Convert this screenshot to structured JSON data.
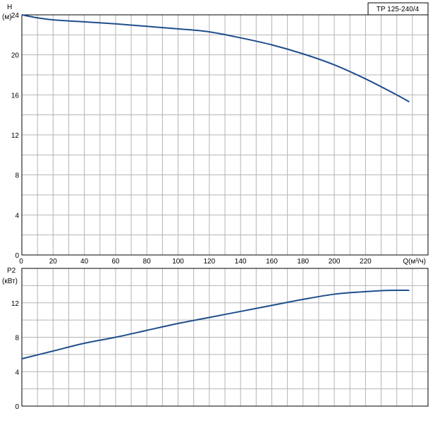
{
  "model": "TP 125-240/4",
  "chart_data": [
    {
      "type": "line",
      "ylabel_line1": "H",
      "ylabel_line2": "(м)",
      "xlabel": "Q(м³/ч)",
      "xlim": [
        0,
        260
      ],
      "ylim": [
        0,
        24
      ],
      "x_ticks": [
        0,
        20,
        40,
        60,
        80,
        100,
        120,
        140,
        160,
        180,
        200,
        220
      ],
      "y_ticks": [
        0,
        4,
        8,
        12,
        16,
        20,
        24
      ],
      "grid": true,
      "series_color": "#1f4e8c",
      "x": [
        0,
        10,
        20,
        40,
        60,
        80,
        100,
        120,
        140,
        160,
        180,
        200,
        220,
        240,
        248
      ],
      "y": [
        24.0,
        23.7,
        23.5,
        23.3,
        23.1,
        22.85,
        22.6,
        22.3,
        21.7,
        21.0,
        20.1,
        19.0,
        17.6,
        16.0,
        15.3
      ]
    },
    {
      "type": "line",
      "ylabel_line1": "P2",
      "ylabel_line2": "(кВт)",
      "xlim": [
        0,
        260
      ],
      "ylim": [
        0,
        16
      ],
      "y_ticks": [
        0,
        4,
        8,
        12
      ],
      "grid": true,
      "series_color": "#1f4e8c",
      "x": [
        0,
        20,
        40,
        60,
        80,
        100,
        120,
        140,
        160,
        180,
        200,
        220,
        235,
        248
      ],
      "y": [
        5.5,
        6.4,
        7.3,
        8.0,
        8.8,
        9.6,
        10.3,
        11.0,
        11.7,
        12.4,
        13.0,
        13.3,
        13.45,
        13.45
      ]
    }
  ]
}
